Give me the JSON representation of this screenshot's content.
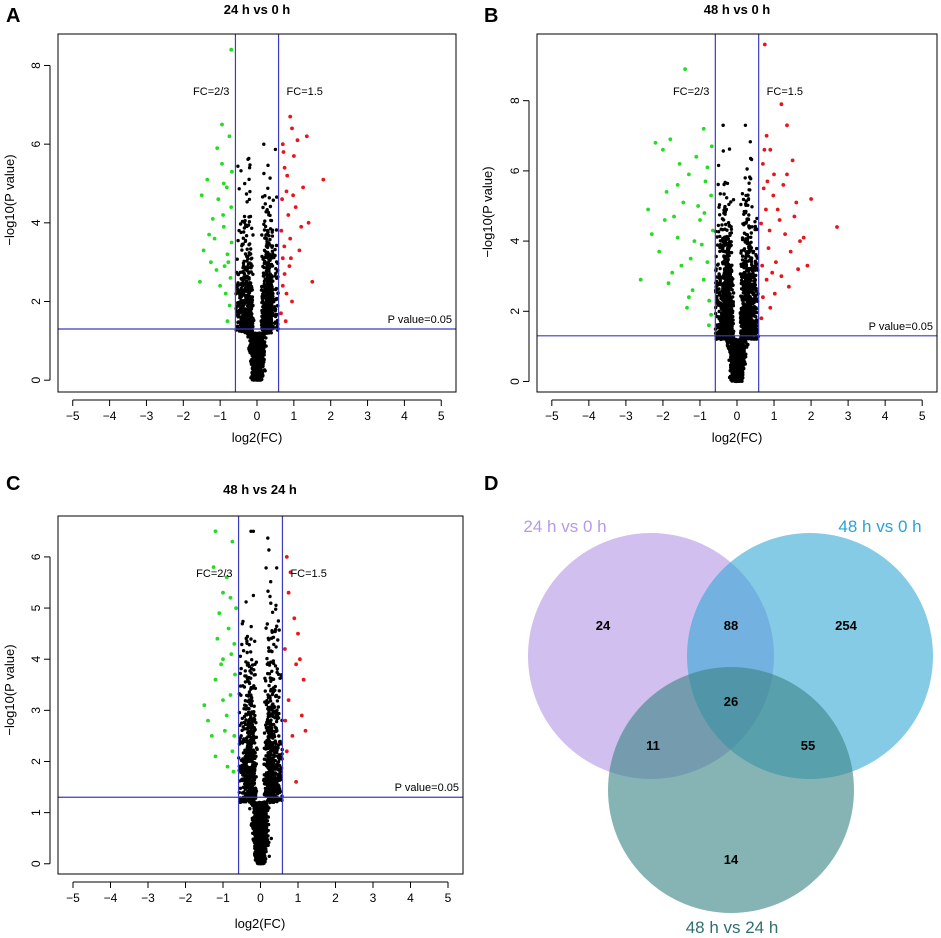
{
  "panels": {
    "A": {
      "letter": "A"
    },
    "B": {
      "letter": "B"
    },
    "C": {
      "letter": "C"
    },
    "D": {
      "letter": "D"
    }
  },
  "colors": {
    "up": "#e8161b",
    "down": "#22dd22",
    "ns": "#000000",
    "threshold_line": "#3b3bbf",
    "venn_a": "#b79ce6",
    "venn_b": "#36a9d6",
    "venn_c": "#3c8686",
    "venn_a_text": "#b69be4",
    "venn_b_text": "#2aa3d3",
    "venn_c_text": "#2f6f6f"
  },
  "chart_data": [
    {
      "id": "volcanoA",
      "type": "scatter",
      "title": "24 h vs 0 h",
      "xlabel": "log2(FC)",
      "ylabel": "−log10(P value)",
      "xlim": [
        -5.4,
        5.4
      ],
      "ylim": [
        -0.3,
        8.8
      ],
      "xticks": [
        -5,
        -4,
        -3,
        -2,
        -1,
        0,
        1,
        2,
        3,
        4,
        5
      ],
      "xtick_labels": [
        "−5",
        "−4",
        "−3",
        "−2",
        "−1",
        "0",
        "1",
        "2",
        "3",
        "4",
        "5"
      ],
      "yticks": [
        0,
        2,
        4,
        6,
        8
      ],
      "ytick_labels": [
        "0",
        "2",
        "4",
        "6",
        "8"
      ],
      "fc_down": -0.585,
      "fc_up": 0.585,
      "p_line": 1.30103,
      "fc_down_label": "FC=2/3",
      "fc_up_label": "FC=1.5",
      "p_label": "P value=0.05",
      "cloud": {
        "n": 2300,
        "ymax": 6.0,
        "seed": 11
      },
      "sig_points": {
        "down": [
          [
            -0.7,
            8.4
          ],
          [
            -0.75,
            6.2
          ],
          [
            -0.95,
            6.5
          ],
          [
            -1.2,
            4.1
          ],
          [
            -1.3,
            3.7
          ],
          [
            -1.55,
            2.5
          ],
          [
            -1.45,
            3.3
          ],
          [
            -0.9,
            5.0
          ],
          [
            -1.05,
            4.6
          ],
          [
            -0.8,
            3.2
          ],
          [
            -0.85,
            2.2
          ],
          [
            -1.1,
            2.8
          ],
          [
            -0.95,
            5.5
          ],
          [
            -0.7,
            4.4
          ],
          [
            -0.78,
            3.0
          ],
          [
            -1.35,
            5.1
          ],
          [
            -0.9,
            3.9
          ],
          [
            -0.72,
            2.6
          ],
          [
            -1.25,
            3.0
          ],
          [
            -0.82,
            4.9
          ],
          [
            -1.0,
            2.4
          ],
          [
            -0.68,
            5.3
          ],
          [
            -0.88,
            2.9
          ],
          [
            -1.15,
            3.6
          ],
          [
            -0.74,
            1.9
          ],
          [
            -1.5,
            4.7
          ],
          [
            -0.92,
            4.2
          ],
          [
            -0.69,
            3.5
          ],
          [
            -1.08,
            5.9
          ],
          [
            -0.8,
            1.5
          ]
        ],
        "up": [
          [
            0.9,
            6.7
          ],
          [
            0.95,
            6.4
          ],
          [
            1.1,
            6.1
          ],
          [
            1.35,
            6.2
          ],
          [
            1.8,
            5.1
          ],
          [
            1.5,
            2.5
          ],
          [
            0.7,
            6.0
          ],
          [
            0.75,
            5.4
          ],
          [
            0.8,
            4.8
          ],
          [
            0.85,
            4.2
          ],
          [
            0.9,
            3.6
          ],
          [
            0.7,
            3.1
          ],
          [
            0.75,
            2.7
          ],
          [
            0.8,
            2.2
          ],
          [
            0.65,
            1.7
          ],
          [
            1.0,
            5.7
          ],
          [
            1.05,
            4.4
          ],
          [
            1.2,
            3.9
          ],
          [
            0.68,
            4.6
          ],
          [
            0.88,
            2.9
          ],
          [
            0.72,
            5.8
          ],
          [
            1.15,
            3.3
          ],
          [
            0.95,
            2.0
          ],
          [
            0.66,
            3.8
          ],
          [
            0.78,
            1.5
          ],
          [
            1.25,
            4.9
          ],
          [
            0.82,
            5.2
          ],
          [
            0.92,
            3.1
          ],
          [
            0.7,
            2.4
          ],
          [
            1.4,
            4.0
          ],
          [
            0.98,
            4.7
          ],
          [
            0.74,
            3.4
          ]
        ]
      }
    },
    {
      "id": "volcanoB",
      "type": "scatter",
      "title": "48 h vs 0 h",
      "xlabel": "log2(FC)",
      "ylabel": "−log10(P value)",
      "xlim": [
        -5.4,
        5.4
      ],
      "ylim": [
        -0.3,
        9.9
      ],
      "xticks": [
        -5,
        -4,
        -3,
        -2,
        -1,
        0,
        1,
        2,
        3,
        4,
        5
      ],
      "xtick_labels": [
        "−5",
        "−4",
        "−3",
        "−2",
        "−1",
        "0",
        "1",
        "2",
        "3",
        "4",
        "5"
      ],
      "yticks": [
        0,
        2,
        4,
        6,
        8
      ],
      "ytick_labels": [
        "0",
        "2",
        "4",
        "6",
        "8"
      ],
      "fc_down": -0.585,
      "fc_up": 0.585,
      "p_line": 1.30103,
      "fc_down_label": "FC=2/3",
      "fc_up_label": "FC=1.5",
      "p_label": "P value=0.05",
      "cloud": {
        "n": 3400,
        "ymax": 7.3,
        "seed": 23
      },
      "sig_points": {
        "down": [
          [
            -1.4,
            8.9
          ],
          [
            -2.6,
            2.9
          ],
          [
            -2.4,
            4.9
          ],
          [
            -2.2,
            6.8
          ],
          [
            -2.0,
            6.6
          ],
          [
            -1.8,
            6.9
          ],
          [
            -1.9,
            5.4
          ],
          [
            -1.7,
            4.7
          ],
          [
            -1.5,
            3.3
          ],
          [
            -1.3,
            5.9
          ],
          [
            -1.1,
            6.4
          ],
          [
            -1.2,
            2.6
          ],
          [
            -0.9,
            7.2
          ],
          [
            -0.8,
            6.1
          ],
          [
            -0.7,
            5.3
          ],
          [
            -1.6,
            4.1
          ],
          [
            -2.1,
            3.7
          ],
          [
            -0.95,
            3.9
          ],
          [
            -0.75,
            2.3
          ],
          [
            -1.0,
            4.6
          ],
          [
            -1.35,
            2.1
          ],
          [
            -0.85,
            5.7
          ],
          [
            -1.25,
            3.5
          ],
          [
            -0.65,
            4.3
          ],
          [
            -1.45,
            5.1
          ],
          [
            -0.9,
            2.9
          ],
          [
            -1.75,
            3.1
          ],
          [
            -2.3,
            4.2
          ],
          [
            -0.7,
            1.9
          ],
          [
            -1.05,
            5.0
          ],
          [
            -1.55,
            6.2
          ],
          [
            -0.8,
            3.4
          ],
          [
            -1.15,
            4.0
          ],
          [
            -0.68,
            6.7
          ],
          [
            -1.95,
            4.6
          ],
          [
            -1.3,
            2.4
          ],
          [
            -0.88,
            4.8
          ],
          [
            -1.6,
            5.6
          ],
          [
            -0.76,
            1.6
          ],
          [
            -1.85,
            2.8
          ]
        ],
        "up": [
          [
            0.75,
            9.6
          ],
          [
            2.7,
            4.4
          ],
          [
            1.2,
            7.9
          ],
          [
            1.35,
            7.3
          ],
          [
            1.5,
            6.3
          ],
          [
            1.9,
            3.3
          ],
          [
            2.0,
            5.2
          ],
          [
            1.6,
            5.1
          ],
          [
            0.9,
            6.6
          ],
          [
            1.0,
            5.9
          ],
          [
            1.1,
            4.9
          ],
          [
            0.8,
            7.0
          ],
          [
            0.7,
            6.2
          ],
          [
            0.65,
            4.5
          ],
          [
            0.85,
            3.8
          ],
          [
            0.95,
            3.1
          ],
          [
            1.3,
            4.2
          ],
          [
            1.45,
            3.7
          ],
          [
            0.7,
            2.4
          ],
          [
            0.8,
            2.9
          ],
          [
            1.7,
            4.0
          ],
          [
            1.05,
            3.4
          ],
          [
            0.72,
            5.5
          ],
          [
            1.25,
            5.6
          ],
          [
            0.9,
            2.1
          ],
          [
            0.66,
            1.8
          ],
          [
            1.15,
            4.6
          ],
          [
            1.55,
            4.7
          ],
          [
            0.78,
            4.9
          ],
          [
            1.4,
            2.7
          ],
          [
            0.98,
            5.3
          ],
          [
            0.68,
            3.3
          ],
          [
            1.8,
            4.1
          ],
          [
            1.2,
            3.0
          ],
          [
            0.88,
            4.3
          ],
          [
            0.74,
            6.6
          ],
          [
            1.65,
            3.2
          ],
          [
            1.02,
            2.5
          ],
          [
            0.82,
            5.7
          ],
          [
            1.35,
            5.9
          ]
        ]
      }
    },
    {
      "id": "volcanoC",
      "type": "scatter",
      "title": "48 h vs 24 h",
      "xlabel": "log2(FC)",
      "ylabel": "−log10(P value)",
      "xlim": [
        -5.4,
        5.4
      ],
      "ylim": [
        -0.2,
        6.8
      ],
      "xticks": [
        -5,
        -4,
        -3,
        -2,
        -1,
        0,
        1,
        2,
        3,
        4,
        5
      ],
      "xtick_labels": [
        "−5",
        "−4",
        "−3",
        "−2",
        "−1",
        "0",
        "1",
        "2",
        "3",
        "4",
        "5"
      ],
      "yticks": [
        0,
        1,
        2,
        3,
        4,
        5,
        6
      ],
      "ytick_labels": [
        "0",
        "1",
        "2",
        "3",
        "4",
        "5",
        "6"
      ],
      "fc_down": -0.585,
      "fc_up": 0.585,
      "p_line": 1.30103,
      "fc_down_label": "FC=2/3",
      "fc_up_label": "FC=1.5",
      "p_label": "P value=0.05",
      "cloud": {
        "n": 2600,
        "ymax": 6.5,
        "seed": 37
      },
      "sig_points": {
        "down": [
          [
            -1.2,
            6.5
          ],
          [
            -0.75,
            6.3
          ],
          [
            -1.0,
            5.3
          ],
          [
            -0.9,
            5.6
          ],
          [
            -1.1,
            4.9
          ],
          [
            -0.85,
            4.6
          ],
          [
            -0.7,
            4.3
          ],
          [
            -1.0,
            4.0
          ],
          [
            -1.2,
            3.6
          ],
          [
            -0.8,
            3.3
          ],
          [
            -1.5,
            3.1
          ],
          [
            -1.3,
            2.5
          ],
          [
            -1.2,
            2.1
          ],
          [
            -0.9,
            2.9
          ],
          [
            -0.75,
            2.2
          ],
          [
            -1.05,
            3.9
          ],
          [
            -0.65,
            5.0
          ],
          [
            -0.95,
            2.6
          ],
          [
            -0.72,
            1.8
          ],
          [
            -1.4,
            2.8
          ],
          [
            -0.8,
            5.2
          ],
          [
            -1.15,
            4.4
          ],
          [
            -0.68,
            3.7
          ],
          [
            -0.88,
            1.9
          ],
          [
            -1.0,
            3.2
          ],
          [
            -1.25,
            5.8
          ],
          [
            -0.78,
            4.1
          ],
          [
            -0.7,
            2.5
          ]
        ],
        "up": [
          [
            0.7,
            6.0
          ],
          [
            0.8,
            5.7
          ],
          [
            0.75,
            5.3
          ],
          [
            0.9,
            4.8
          ],
          [
            1.0,
            4.5
          ],
          [
            1.05,
            4.0
          ],
          [
            1.15,
            3.6
          ],
          [
            1.2,
            2.6
          ],
          [
            0.95,
            3.9
          ],
          [
            0.65,
            4.2
          ],
          [
            0.85,
            2.5
          ],
          [
            1.1,
            2.9
          ],
          [
            0.7,
            2.2
          ],
          [
            0.95,
            1.6
          ],
          [
            0.75,
            3.2
          ],
          [
            0.66,
            2.8
          ]
        ]
      }
    },
    {
      "id": "venn",
      "type": "venn",
      "sets": [
        {
          "name": "24 h vs 0 h"
        },
        {
          "name": "48 h vs 0 h"
        },
        {
          "name": "48 h vs 24 h"
        }
      ],
      "regions": {
        "only_24h_vs_0h": "24",
        "only_48h_vs_0h": "254",
        "only_48h_vs_24h": "14",
        "a_and_b_only": "88",
        "a_and_c_only": "11",
        "b_and_c_only": "55",
        "all_three": "26"
      }
    }
  ]
}
